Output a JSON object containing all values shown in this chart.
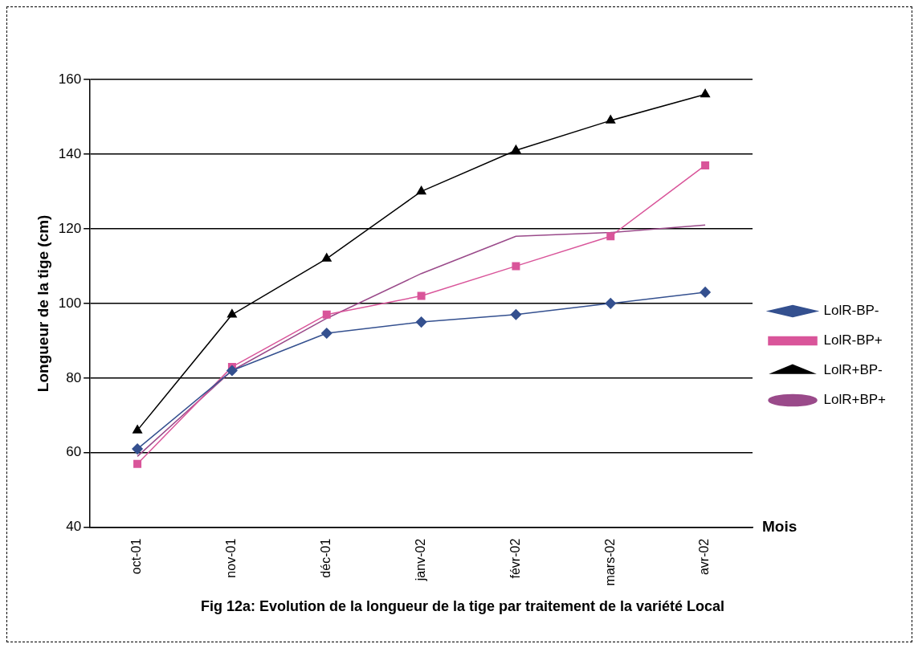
{
  "chart_data": {
    "type": "line",
    "title": "Fig 12a: Evolution de la longueur de la tige par traitement de la variété Local",
    "xlabel": "Mois",
    "ylabel": "Longueur de la tige (cm)",
    "categories": [
      "oct-01",
      "nov-01",
      "déc-01",
      "janv-02",
      "févr-02",
      "mars-02",
      "avr-02"
    ],
    "series": [
      {
        "name": "LolR-BP-",
        "color": "#34508f",
        "marker": "diamond",
        "values": [
          61,
          82,
          92,
          95,
          97,
          100,
          103
        ]
      },
      {
        "name": "LolR-BP+",
        "color": "#d9559a",
        "marker": "square",
        "values": [
          57,
          83,
          97,
          102,
          110,
          118,
          137
        ]
      },
      {
        "name": "LolR+BP-",
        "color": "#000000",
        "marker": "triangle",
        "values": [
          66,
          97,
          112,
          130,
          141,
          149,
          156
        ]
      },
      {
        "name": "LolR+BP+",
        "color": "#9a4a8a",
        "marker": "none",
        "values": [
          59,
          82,
          96,
          108,
          118,
          119,
          121
        ]
      }
    ],
    "ylim": [
      40,
      160
    ],
    "yticks": [
      40,
      60,
      80,
      100,
      120,
      140,
      160
    ],
    "grid": "y",
    "legend": "right"
  }
}
